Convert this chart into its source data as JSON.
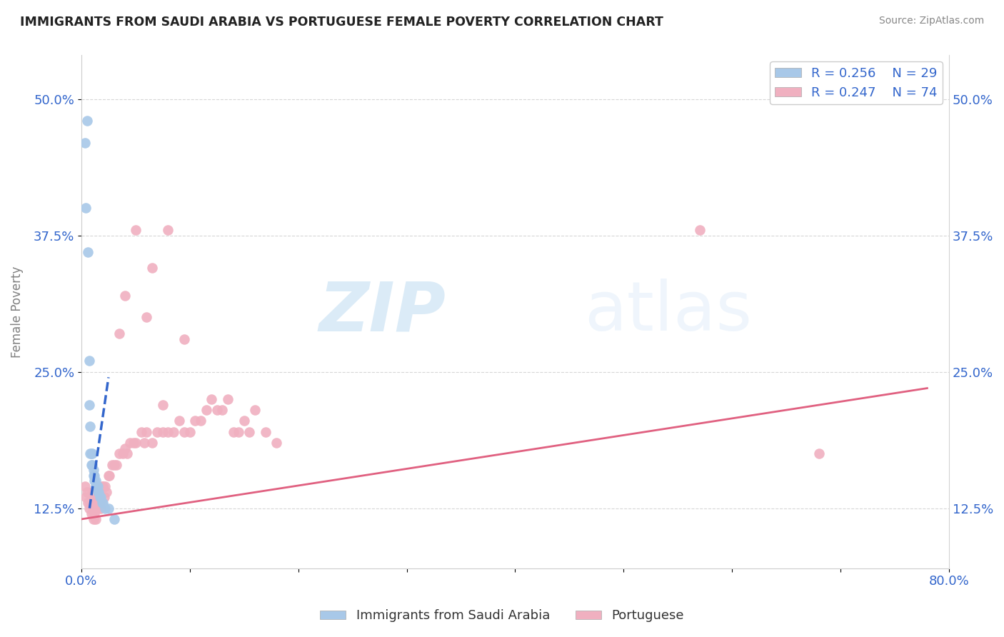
{
  "title": "IMMIGRANTS FROM SAUDI ARABIA VS PORTUGUESE FEMALE POVERTY CORRELATION CHART",
  "source": "Source: ZipAtlas.com",
  "ylabel": "Female Poverty",
  "xlim": [
    0.0,
    0.8
  ],
  "ylim": [
    0.07,
    0.54
  ],
  "yticks": [
    0.125,
    0.25,
    0.375,
    0.5
  ],
  "ytick_labels": [
    "12.5%",
    "25.0%",
    "37.5%",
    "50.0%"
  ],
  "xticks": [
    0.0,
    0.1,
    0.2,
    0.3,
    0.4,
    0.5,
    0.6,
    0.7,
    0.8
  ],
  "xtick_labels": [
    "0.0%",
    "",
    "",
    "",
    "",
    "",
    "",
    "",
    "80.0%"
  ],
  "blue_R": 0.256,
  "blue_N": 29,
  "pink_R": 0.247,
  "pink_N": 74,
  "blue_color": "#a8c8e8",
  "pink_color": "#f0b0c0",
  "blue_line_color": "#3366cc",
  "pink_line_color": "#e06080",
  "watermark_zip": "ZIP",
  "watermark_atlas": "atlas",
  "blue_scatter_x": [
    0.003,
    0.004,
    0.005,
    0.006,
    0.007,
    0.007,
    0.008,
    0.008,
    0.009,
    0.009,
    0.01,
    0.01,
    0.011,
    0.011,
    0.012,
    0.012,
    0.013,
    0.013,
    0.014,
    0.015,
    0.015,
    0.016,
    0.017,
    0.018,
    0.019,
    0.02,
    0.022,
    0.025,
    0.03
  ],
  "blue_scatter_y": [
    0.46,
    0.4,
    0.48,
    0.36,
    0.22,
    0.26,
    0.2,
    0.175,
    0.175,
    0.165,
    0.175,
    0.165,
    0.16,
    0.155,
    0.155,
    0.15,
    0.15,
    0.145,
    0.145,
    0.145,
    0.14,
    0.14,
    0.135,
    0.135,
    0.13,
    0.13,
    0.125,
    0.125,
    0.115
  ],
  "pink_scatter_x": [
    0.003,
    0.004,
    0.005,
    0.006,
    0.007,
    0.008,
    0.009,
    0.009,
    0.01,
    0.01,
    0.011,
    0.011,
    0.012,
    0.012,
    0.013,
    0.013,
    0.014,
    0.015,
    0.015,
    0.016,
    0.017,
    0.018,
    0.019,
    0.02,
    0.021,
    0.022,
    0.023,
    0.025,
    0.026,
    0.028,
    0.03,
    0.032,
    0.035,
    0.038,
    0.04,
    0.042,
    0.045,
    0.048,
    0.05,
    0.055,
    0.058,
    0.06,
    0.065,
    0.07,
    0.075,
    0.08,
    0.085,
    0.09,
    0.095,
    0.1,
    0.105,
    0.11,
    0.115,
    0.12,
    0.125,
    0.13,
    0.135,
    0.14,
    0.145,
    0.15,
    0.155,
    0.16,
    0.17,
    0.18,
    0.035,
    0.04,
    0.05,
    0.06,
    0.065,
    0.075,
    0.08,
    0.095,
    0.57,
    0.68
  ],
  "pink_scatter_y": [
    0.145,
    0.135,
    0.14,
    0.13,
    0.125,
    0.13,
    0.135,
    0.12,
    0.14,
    0.13,
    0.125,
    0.115,
    0.13,
    0.12,
    0.125,
    0.115,
    0.14,
    0.135,
    0.125,
    0.135,
    0.13,
    0.125,
    0.145,
    0.145,
    0.135,
    0.145,
    0.14,
    0.155,
    0.155,
    0.165,
    0.165,
    0.165,
    0.175,
    0.175,
    0.18,
    0.175,
    0.185,
    0.185,
    0.185,
    0.195,
    0.185,
    0.195,
    0.185,
    0.195,
    0.195,
    0.195,
    0.195,
    0.205,
    0.195,
    0.195,
    0.205,
    0.205,
    0.215,
    0.225,
    0.215,
    0.215,
    0.225,
    0.195,
    0.195,
    0.205,
    0.195,
    0.215,
    0.195,
    0.185,
    0.285,
    0.32,
    0.38,
    0.3,
    0.345,
    0.22,
    0.38,
    0.28,
    0.38,
    0.175
  ],
  "blue_line_x": [
    0.0075,
    0.025
  ],
  "blue_line_y": [
    0.125,
    0.245
  ],
  "pink_line_x": [
    0.0,
    0.78
  ],
  "pink_line_y": [
    0.115,
    0.235
  ]
}
